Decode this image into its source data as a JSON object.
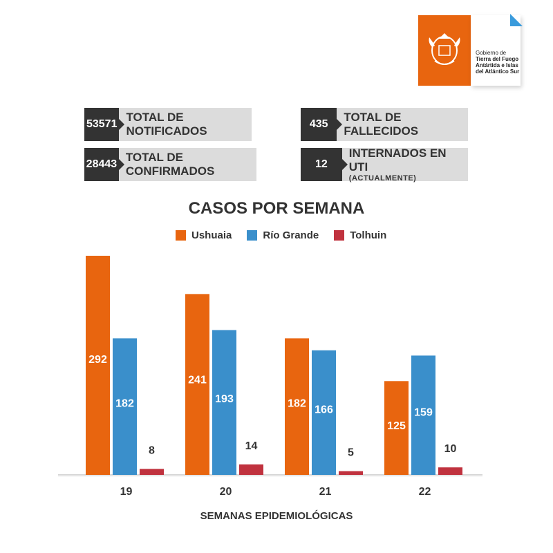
{
  "logo": {
    "lines": [
      "Gobierno de",
      "Tierra del Fuego",
      "Antártida e Islas",
      "del Atlántico Sur"
    ]
  },
  "stats": [
    {
      "value": "53571",
      "label": "TOTAL DE NOTIFICADOS",
      "sub": ""
    },
    {
      "value": "435",
      "label": "TOTAL DE FALLECIDOS",
      "sub": ""
    },
    {
      "value": "28443",
      "label": "TOTAL DE CONFIRMADOS",
      "sub": ""
    },
    {
      "value": "12",
      "label": "INTERNADOS EN UTI",
      "sub": "(ACTUALMENTE)"
    }
  ],
  "colors": {
    "ushuaia": "#e8650f",
    "rio_grande": "#3a8fcb",
    "tolhuin": "#c0323e",
    "logo_accent": "#3a9bdc"
  },
  "chart_data": {
    "type": "bar",
    "title": "CASOS POR SEMANA",
    "xlabel": "SEMANAS EPIDEMIOLÓGICAS",
    "ylabel": "",
    "categories": [
      "19",
      "20",
      "21",
      "22"
    ],
    "series": [
      {
        "name": "Ushuaia",
        "values": [
          292,
          241,
          182,
          125
        ]
      },
      {
        "name": "Río Grande",
        "values": [
          182,
          193,
          166,
          159
        ]
      },
      {
        "name": "Tolhuin",
        "values": [
          8,
          14,
          5,
          10
        ]
      }
    ],
    "ylim": [
      0,
      292
    ],
    "legend": "top-center",
    "grid": false
  }
}
